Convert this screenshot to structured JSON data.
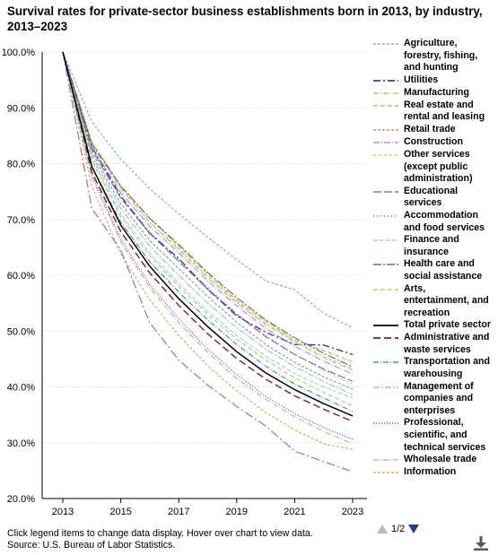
{
  "header": {
    "title": "Survival rates for private-sector business establishments born in 2013, by industry, 2013–2023"
  },
  "footer": {
    "note": "Click legend items to change data display. Hover over chart to view data.",
    "source": "Source: U.S. Bureau of Labor Statistics."
  },
  "pager": {
    "label": "1/2"
  },
  "icons": {
    "download": "download-icon",
    "prev": "triangle-up-icon",
    "next": "triangle-down-icon"
  },
  "chart_data": {
    "type": "line",
    "title": "Survival rates for private-sector business establishments born in 2013, by industry, 2013–2023",
    "xlabel": "",
    "ylabel": "",
    "x": [
      2013,
      2014,
      2015,
      2016,
      2017,
      2018,
      2019,
      2020,
      2021,
      2022,
      2023
    ],
    "x_ticks": [
      "2013",
      "2015",
      "2017",
      "2019",
      "2021",
      "2023"
    ],
    "y_ticks": [
      "20.0%",
      "30.0%",
      "40.0%",
      "50.0%",
      "60.0%",
      "70.0%",
      "80.0%",
      "90.0%",
      "100.0%"
    ],
    "ylim": [
      20,
      100
    ],
    "grid": "horizontal dotted",
    "legend_position": "right",
    "series": [
      {
        "name": "Agriculture, forestry, fishing, and hunting",
        "color": "#6fa0d8",
        "dash": "3,2",
        "width": 1,
        "values": [
          100,
          87.5,
          80.8,
          75.5,
          71,
          66.8,
          62.8,
          59,
          57.4,
          53.2,
          50.6
        ]
      },
      {
        "name": "Utilities",
        "color": "#2e3ea8",
        "dash": "8,3,2,3",
        "width": 1.4,
        "values": [
          100,
          83,
          74.2,
          67.5,
          63,
          57.5,
          52.7,
          49.8,
          47.6,
          47.5,
          45.8
        ]
      },
      {
        "name": "Manufacturing",
        "color": "#8fcf5e",
        "dash": "6,2,1,2",
        "width": 1,
        "values": [
          100,
          83.5,
          75.5,
          69.5,
          64.5,
          59.5,
          55,
          51.2,
          48,
          45.2,
          43
        ]
      },
      {
        "name": "Real estate and rental and leasing",
        "color": "#d4a03a",
        "dash": "5,3",
        "width": 1,
        "values": [
          100,
          84,
          76,
          70.2,
          65.2,
          60.2,
          55.5,
          51.8,
          48.4,
          46.5,
          44.5
        ]
      },
      {
        "name": "Retail trade",
        "color": "#888888",
        "dash": "3,2",
        "width": 1,
        "values": [
          100,
          82,
          72.8,
          66.2,
          61.2,
          56.2,
          51.6,
          47.6,
          44.4,
          41.8,
          39.6
        ]
      },
      {
        "name": "Construction",
        "color": "#c96ad6",
        "dash": "7,2,1,2",
        "width": 1,
        "values": [
          100,
          83,
          74.8,
          68.8,
          64,
          59,
          54.5,
          50.5,
          47.3,
          44.6,
          42.3
        ]
      },
      {
        "name": "Other services (except public administration)",
        "color": "#c8c832",
        "dash": "3,3",
        "width": 1,
        "values": [
          100,
          84,
          75.8,
          69.5,
          64.8,
          59.8,
          55.3,
          51.4,
          48.2,
          45.5,
          43.2
        ]
      },
      {
        "name": "Educational services",
        "color": "#3a6fa8",
        "dash": "9,3",
        "width": 1,
        "values": [
          100,
          82.5,
          73.8,
          67.5,
          62.5,
          57.5,
          53,
          49,
          45.8,
          43.2,
          41
        ]
      },
      {
        "name": "Accommodation and food services",
        "color": "#b86a4a",
        "dash": "1,3",
        "width": 1.2,
        "values": [
          100,
          82.5,
          74,
          67.8,
          62.8,
          57.8,
          53.2,
          49.2,
          45.8,
          43,
          40.4
        ]
      },
      {
        "name": "Finance and insurance",
        "color": "#7fd4e8",
        "dash": "5,2",
        "width": 1,
        "values": [
          100,
          81,
          71,
          64,
          58.5,
          53.5,
          49.2,
          45.5,
          42.4,
          40,
          38
        ]
      },
      {
        "name": "Health care and social assistance",
        "color": "#3d5a80",
        "dash": "9,2,2,2",
        "width": 1,
        "values": [
          100,
          83.5,
          76,
          70.2,
          65.5,
          60.5,
          56,
          52,
          48.8,
          46,
          43.6
        ]
      },
      {
        "name": "Arts, entertainment, and recreation",
        "color": "#b8c83a",
        "dash": "5,3",
        "width": 1,
        "values": [
          100,
          80.5,
          70.5,
          63.5,
          58,
          53,
          48.6,
          44.8,
          41.6,
          39,
          36.6
        ]
      },
      {
        "name": "Total private sector",
        "color": "#000000",
        "dash": "",
        "width": 1.5,
        "values": [
          100,
          79.5,
          69,
          61.6,
          55.8,
          50.8,
          46.3,
          42.5,
          39.5,
          37,
          34.8
        ]
      },
      {
        "name": "Administrative and waste services",
        "color": "#8b1a1a",
        "dash": "8,4",
        "width": 1.4,
        "values": [
          100,
          78.5,
          67.8,
          60.4,
          54.6,
          49.5,
          45.1,
          41.4,
          38.4,
          36,
          33.8
        ]
      },
      {
        "name": "Transportation and warehousing",
        "color": "#1f7fb0",
        "dash": "6,2,1,2",
        "width": 1,
        "values": [
          100,
          79.5,
          69.5,
          62.4,
          57,
          52,
          47.6,
          43.7,
          40.5,
          38,
          35.6
        ]
      },
      {
        "name": "Management of companies and enterprises",
        "color": "#8bb8c8",
        "dash": "7,2,2,2",
        "width": 1,
        "values": [
          100,
          81.5,
          72,
          65.2,
          60,
          55,
          50.6,
          46.8,
          43.6,
          41,
          38.6
        ]
      },
      {
        "name": "Professional, scientific, and technical services",
        "color": "#9a2fc8",
        "dash": "1,2",
        "width": 1.3,
        "values": [
          100,
          78,
          66.5,
          58.4,
          52.2,
          46.8,
          42.2,
          38.3,
          35.2,
          32.7,
          30.6
        ]
      },
      {
        "name": "Wholesale trade",
        "color": "#7ec87e",
        "dash": "6,2,1,2",
        "width": 1,
        "values": [
          100,
          77.5,
          66,
          57.8,
          51.5,
          46.2,
          41.5,
          37.8,
          34.6,
          32,
          29.8
        ]
      },
      {
        "name": "Information",
        "color": "#d4a03a",
        "dash": "3,2",
        "width": 1,
        "values": [
          100,
          76,
          63.8,
          55.6,
          49.2,
          43.8,
          39.3,
          35.4,
          32.3,
          29.8,
          28.8
        ]
      },
      {
        "name": "",
        "color": "#7a7ad6",
        "dash": "10,3,2,3",
        "width": 1.2,
        "values": [
          100,
          72,
          64.5,
          51.5,
          44.8,
          40.3,
          36.5,
          33,
          28.5,
          26.6,
          24.8
        ]
      }
    ]
  }
}
